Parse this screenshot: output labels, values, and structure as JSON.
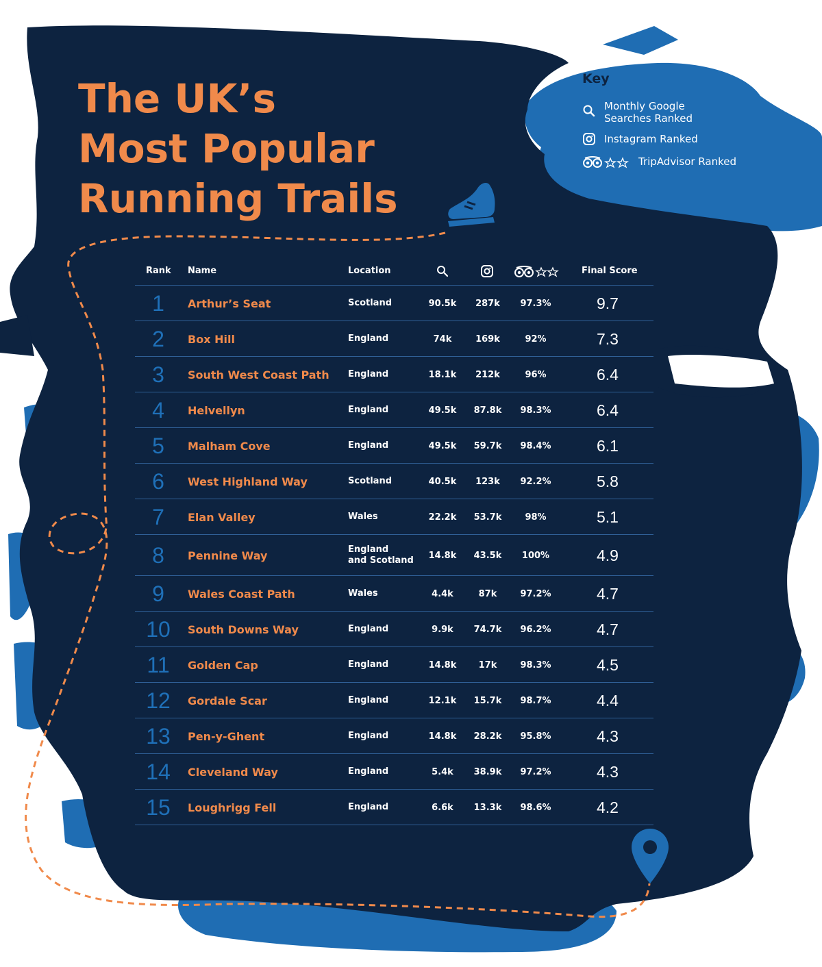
{
  "colors": {
    "navy": "#0d2340",
    "blue": "#1f70b8",
    "orange": "#f08a4b",
    "white": "#ffffff"
  },
  "title": {
    "line1": "The UK’s",
    "line2": "Most Popular",
    "line3": "Running Trails"
  },
  "key": {
    "title": "Key",
    "items": [
      {
        "icon": "search-icon",
        "label_line1": "Monthly Google",
        "label_line2": "Searches Ranked"
      },
      {
        "icon": "instagram-icon",
        "label_line1": "Instagram Ranked",
        "label_line2": ""
      },
      {
        "icon": "tripadvisor-icon",
        "label_line1": "TripAdvisor Ranked",
        "label_line2": ""
      }
    ]
  },
  "headers": {
    "rank": "Rank",
    "name": "Name",
    "location": "Location",
    "google_icon": "search-icon",
    "instagram_icon": "instagram-icon",
    "tripadvisor_icon": "tripadvisor-icon",
    "score": "Final Score"
  },
  "rows": [
    {
      "rank": "1",
      "name": "Arthur’s Seat",
      "location": "Scotland",
      "google": "90.5k",
      "instagram": "287k",
      "tripadvisor": "97.3%",
      "score": "9.7"
    },
    {
      "rank": "2",
      "name": "Box Hill",
      "location": "England",
      "google": "74k",
      "instagram": "169k",
      "tripadvisor": "92%",
      "score": "7.3"
    },
    {
      "rank": "3",
      "name": "South West Coast Path",
      "location": "England",
      "google": "18.1k",
      "instagram": "212k",
      "tripadvisor": "96%",
      "score": "6.4"
    },
    {
      "rank": "4",
      "name": "Helvellyn",
      "location": "England",
      "google": "49.5k",
      "instagram": "87.8k",
      "tripadvisor": "98.3%",
      "score": "6.4"
    },
    {
      "rank": "5",
      "name": "Malham Cove",
      "location": "England",
      "google": "49.5k",
      "instagram": "59.7k",
      "tripadvisor": "98.4%",
      "score": "6.1"
    },
    {
      "rank": "6",
      "name": "West Highland Way",
      "location": "Scotland",
      "google": "40.5k",
      "instagram": "123k",
      "tripadvisor": "92.2%",
      "score": "5.8"
    },
    {
      "rank": "7",
      "name": "Elan Valley",
      "location": "Wales",
      "google": "22.2k",
      "instagram": "53.7k",
      "tripadvisor": "98%",
      "score": "5.1"
    },
    {
      "rank": "8",
      "name": "Pennine Way",
      "location": "England and Scotland",
      "location_line1": "England",
      "location_line2": "and Scotland",
      "google": "14.8k",
      "instagram": "43.5k",
      "tripadvisor": "100%",
      "score": "4.9"
    },
    {
      "rank": "9",
      "name": "Wales Coast Path",
      "location": "Wales",
      "google": "4.4k",
      "instagram": "87k",
      "tripadvisor": "97.2%",
      "score": "4.7"
    },
    {
      "rank": "10",
      "name": "South Downs Way",
      "location": "England",
      "google": "9.9k",
      "instagram": "74.7k",
      "tripadvisor": "96.2%",
      "score": "4.7"
    },
    {
      "rank": "11",
      "name": "Golden Cap",
      "location": "England",
      "google": "14.8k",
      "instagram": "17k",
      "tripadvisor": "98.3%",
      "score": "4.5"
    },
    {
      "rank": "12",
      "name": "Gordale Scar",
      "location": "England",
      "google": "12.1k",
      "instagram": "15.7k",
      "tripadvisor": "98.7%",
      "score": "4.4"
    },
    {
      "rank": "13",
      "name": "Pen-y-Ghent",
      "location": "England",
      "google": "14.8k",
      "instagram": "28.2k",
      "tripadvisor": "95.8%",
      "score": "4.3"
    },
    {
      "rank": "14",
      "name": "Cleveland Way",
      "location": "England",
      "google": "5.4k",
      "instagram": "38.9k",
      "tripadvisor": "97.2%",
      "score": "4.3"
    },
    {
      "rank": "15",
      "name": "Loughrigg Fell",
      "location": "England",
      "google": "6.6k",
      "instagram": "13.3k",
      "tripadvisor": "98.6%",
      "score": "4.2"
    }
  ]
}
